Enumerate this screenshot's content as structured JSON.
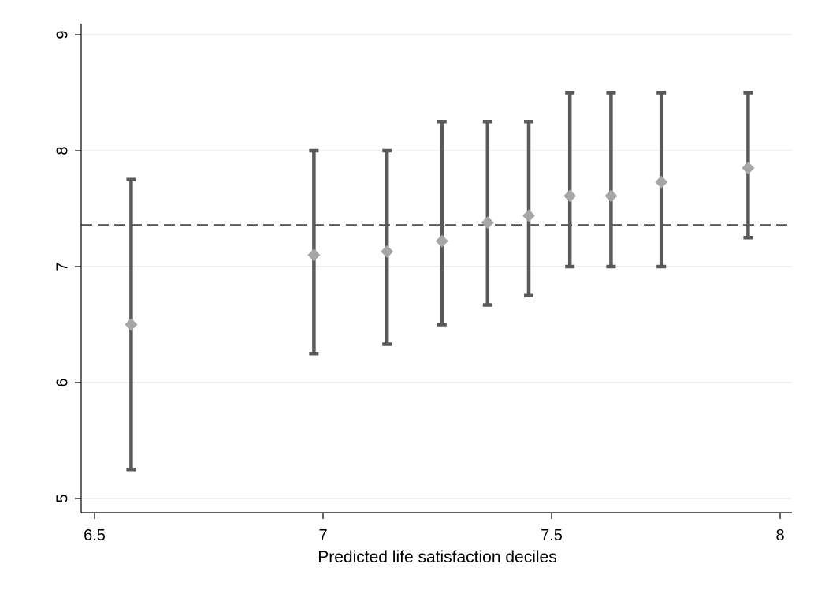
{
  "chart_data": {
    "type": "scatter",
    "title": "",
    "xlabel": "Predicted life satisfaction deciles",
    "ylabel": "",
    "xlim": [
      6.5,
      8.0
    ],
    "ylim": [
      5,
      9
    ],
    "xticks": [
      6.5,
      7,
      7.5,
      8
    ],
    "xtick_labels": [
      "6.5",
      "7",
      "7.5",
      "8"
    ],
    "yticks": [
      5,
      6,
      7,
      8,
      9
    ],
    "ytick_labels": [
      "5",
      "6",
      "7",
      "8",
      "9"
    ],
    "grid": "horizontal",
    "reference_line": {
      "y": 7.36,
      "style": "dashed"
    },
    "series": [
      {
        "marker": "diamond",
        "points": [
          {
            "x": 6.58,
            "y": 6.5,
            "lower": 5.25,
            "upper": 7.75
          },
          {
            "x": 6.98,
            "y": 7.1,
            "lower": 6.25,
            "upper": 8.0
          },
          {
            "x": 7.14,
            "y": 7.13,
            "lower": 6.33,
            "upper": 8.0
          },
          {
            "x": 7.26,
            "y": 7.22,
            "lower": 6.5,
            "upper": 8.25
          },
          {
            "x": 7.36,
            "y": 7.38,
            "lower": 6.67,
            "upper": 8.25
          },
          {
            "x": 7.45,
            "y": 7.44,
            "lower": 6.75,
            "upper": 8.25
          },
          {
            "x": 7.54,
            "y": 7.61,
            "lower": 7.0,
            "upper": 8.5
          },
          {
            "x": 7.63,
            "y": 7.61,
            "lower": 7.0,
            "upper": 8.5
          },
          {
            "x": 7.74,
            "y": 7.73,
            "lower": 7.0,
            "upper": 8.5
          },
          {
            "x": 7.93,
            "y": 7.85,
            "lower": 7.25,
            "upper": 8.5
          }
        ]
      }
    ],
    "colors": {
      "errorbar": "#595959",
      "marker": "#a6a6a6",
      "grid": "#e6e6e6",
      "reference_line": "#404040",
      "axis": "#000000"
    }
  }
}
